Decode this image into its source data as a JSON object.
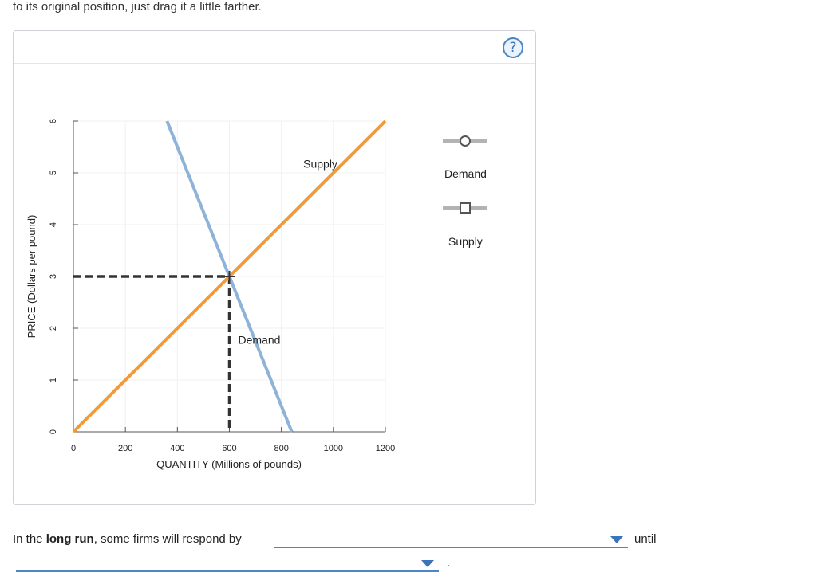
{
  "intro_text": "to its original position, just drag it a little farther.",
  "help_label": "?",
  "colors": {
    "demand": "#8fb2d8",
    "supply": "#f19a3a",
    "dashed": "#333333",
    "grid": "#f0f0f0",
    "axis": "#555555",
    "accent": "#4a86c8"
  },
  "chart_data": {
    "type": "line",
    "xlabel": "QUANTITY (Millions of pounds)",
    "ylabel": "PRICE (Dollars per pound)",
    "xlim": [
      0,
      1200
    ],
    "ylim": [
      0,
      6
    ],
    "xticks": [
      0,
      200,
      400,
      600,
      800,
      1000,
      1200
    ],
    "yticks": [
      0,
      1,
      2,
      3,
      4,
      5,
      6
    ],
    "grid": true,
    "series": [
      {
        "name": "Demand",
        "points": [
          [
            360,
            6
          ],
          [
            840,
            0
          ]
        ]
      },
      {
        "name": "Supply",
        "points": [
          [
            0,
            0
          ],
          [
            1200,
            6
          ]
        ]
      }
    ],
    "equilibrium": {
      "x": 600,
      "y": 3
    },
    "annotations": [
      {
        "text": "Supply",
        "x": 950,
        "y": 5.1
      },
      {
        "text": "Demand",
        "x": 715,
        "y": 1.7
      }
    ],
    "legend_position": "right"
  },
  "legend": {
    "demand_label": "Demand",
    "supply_label": "Supply"
  },
  "question": {
    "prefix": "In the ",
    "bold": "long run",
    "suffix": ", some firms will respond by",
    "dropdown1_value": "",
    "connector": "until",
    "dropdown2_value": "",
    "end": "."
  }
}
